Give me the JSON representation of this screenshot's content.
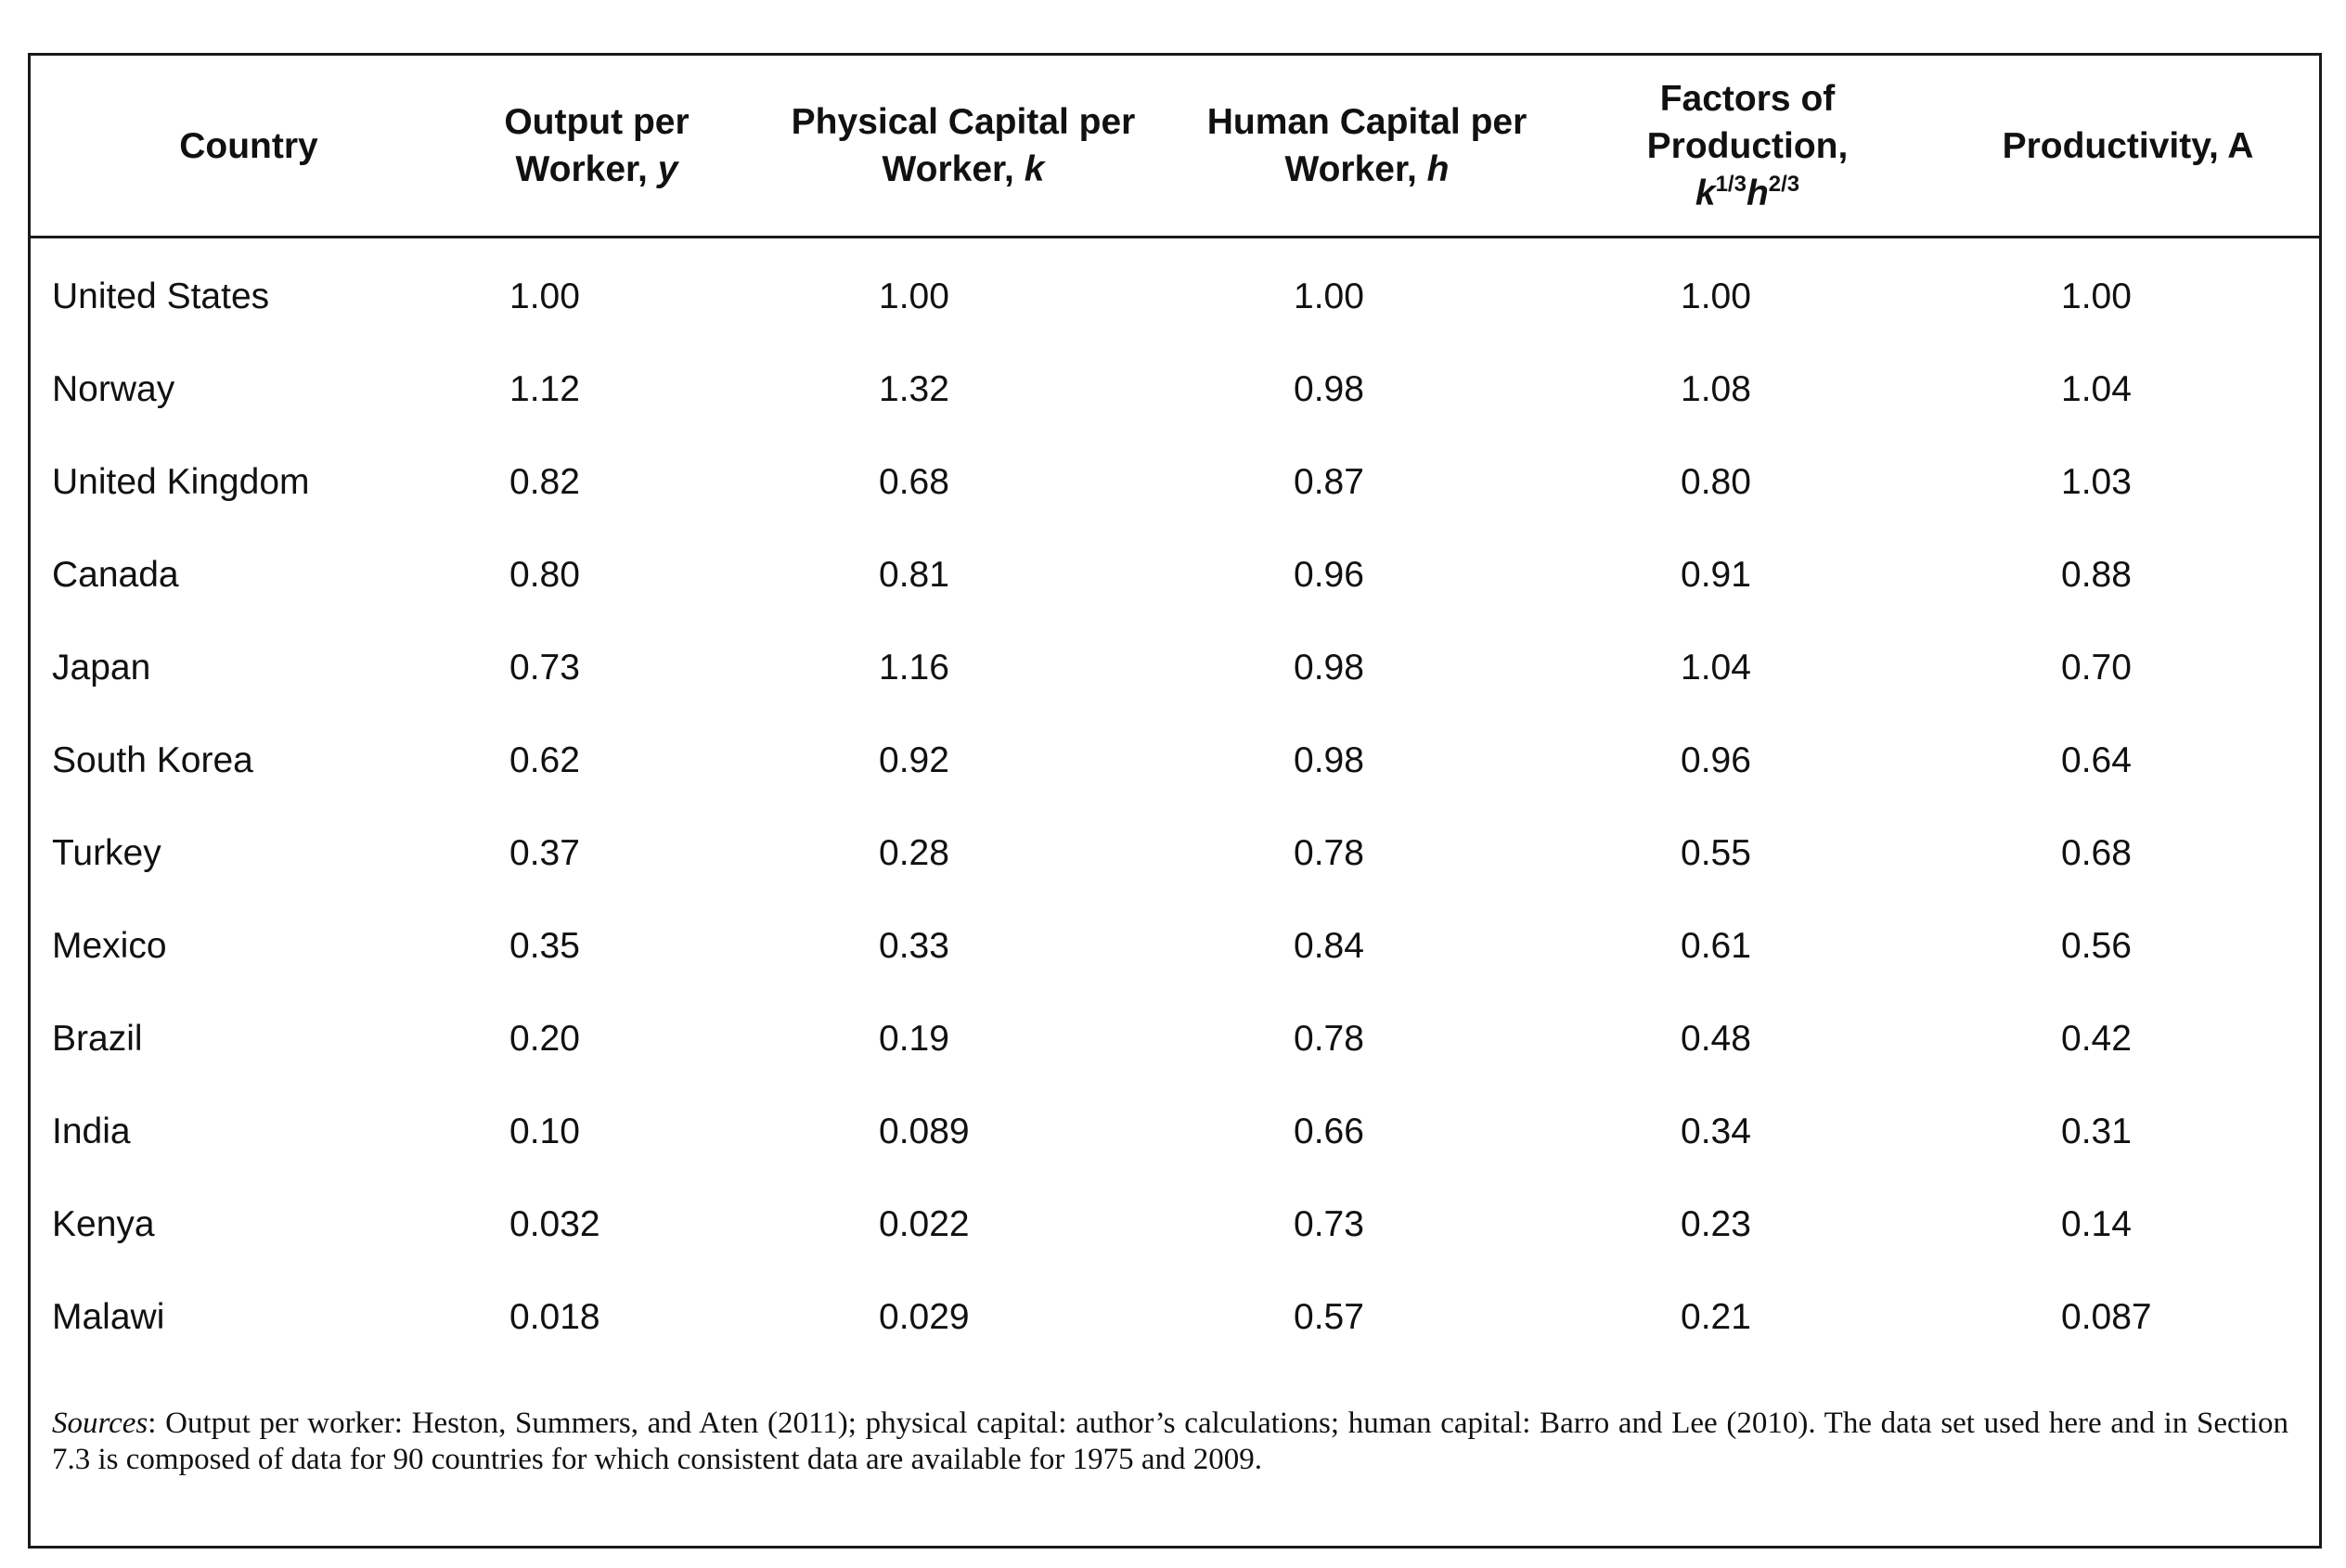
{
  "table": {
    "headers": {
      "country": "Country",
      "output": {
        "line1": "Output per",
        "line2": "Worker, ",
        "var": "y"
      },
      "physical": {
        "line1": "Physical Capital per",
        "line2": "Worker, ",
        "var": "k"
      },
      "human": {
        "line1": "Human Capital per",
        "line2": "Worker, ",
        "var": "h"
      },
      "factors": {
        "line1": "Factors of",
        "line2": "Production,",
        "k": "k",
        "k_exp": "1/3",
        "h": "h",
        "h_exp": "2/3"
      },
      "productivity": "Productivity, A"
    },
    "rows": [
      [
        "United States",
        "1.00",
        "1.00",
        "1.00",
        "1.00",
        "1.00"
      ],
      [
        "Norway",
        "1.12",
        "1.32",
        "0.98",
        "1.08",
        "1.04"
      ],
      [
        "United Kingdom",
        "0.82",
        "0.68",
        "0.87",
        "0.80",
        "1.03"
      ],
      [
        "Canada",
        "0.80",
        "0.81",
        "0.96",
        "0.91",
        "0.88"
      ],
      [
        "Japan",
        "0.73",
        "1.16",
        "0.98",
        "1.04",
        "0.70"
      ],
      [
        "South Korea",
        "0.62",
        "0.92",
        "0.98",
        "0.96",
        "0.64"
      ],
      [
        "Turkey",
        "0.37",
        "0.28",
        "0.78",
        "0.55",
        "0.68"
      ],
      [
        "Mexico",
        "0.35",
        "0.33",
        "0.84",
        "0.61",
        "0.56"
      ],
      [
        "Brazil",
        "0.20",
        "0.19",
        "0.78",
        "0.48",
        "0.42"
      ],
      [
        "India",
        "0.10",
        "0.089",
        "0.66",
        "0.34",
        "0.31"
      ],
      [
        "Kenya",
        "0.032",
        "0.022",
        "0.73",
        "0.23",
        "0.14"
      ],
      [
        "Malawi",
        "0.018",
        "0.029",
        "0.57",
        "0.21",
        "0.087"
      ]
    ]
  },
  "sources": {
    "label": "Sources",
    "text": ": Output per worker: Heston, Summers, and Aten (2011); physical capital: author’s calculations; human capital: Barro and Lee (2010). The data set used here and in Section 7.3 is composed of data for 90 countries for which consistent data are available for 1975 and 2009."
  }
}
